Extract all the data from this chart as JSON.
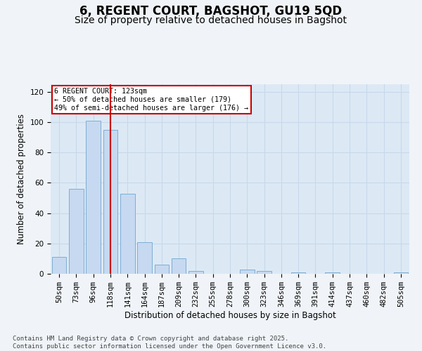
{
  "title": "6, REGENT COURT, BAGSHOT, GU19 5QD",
  "subtitle": "Size of property relative to detached houses in Bagshot",
  "xlabel": "Distribution of detached houses by size in Bagshot",
  "ylabel": "Number of detached properties",
  "categories": [
    "50sqm",
    "73sqm",
    "96sqm",
    "118sqm",
    "141sqm",
    "164sqm",
    "187sqm",
    "209sqm",
    "232sqm",
    "255sqm",
    "278sqm",
    "300sqm",
    "323sqm",
    "346sqm",
    "369sqm",
    "391sqm",
    "414sqm",
    "437sqm",
    "460sqm",
    "482sqm",
    "505sqm"
  ],
  "values": [
    11,
    56,
    101,
    95,
    53,
    21,
    6,
    10,
    2,
    0,
    0,
    3,
    2,
    0,
    1,
    0,
    1,
    0,
    0,
    0,
    1
  ],
  "bar_color": "#c6d9f0",
  "bar_edge_color": "#7eadd4",
  "grid_color": "#c8d8ea",
  "bg_color": "#dce9f5",
  "vline_x_index": 3,
  "vline_color": "#cc0000",
  "annotation_text": "6 REGENT COURT: 123sqm\n← 50% of detached houses are smaller (179)\n49% of semi-detached houses are larger (176) →",
  "annotation_box_color": "#ffffff",
  "annotation_box_edge": "#cc0000",
  "ylim": [
    0,
    125
  ],
  "yticks": [
    0,
    20,
    40,
    60,
    80,
    100,
    120
  ],
  "footer": "Contains HM Land Registry data © Crown copyright and database right 2025.\nContains public sector information licensed under the Open Government Licence v3.0.",
  "title_fontsize": 12,
  "subtitle_fontsize": 10,
  "label_fontsize": 8.5,
  "tick_fontsize": 7.5,
  "footer_fontsize": 6.5
}
